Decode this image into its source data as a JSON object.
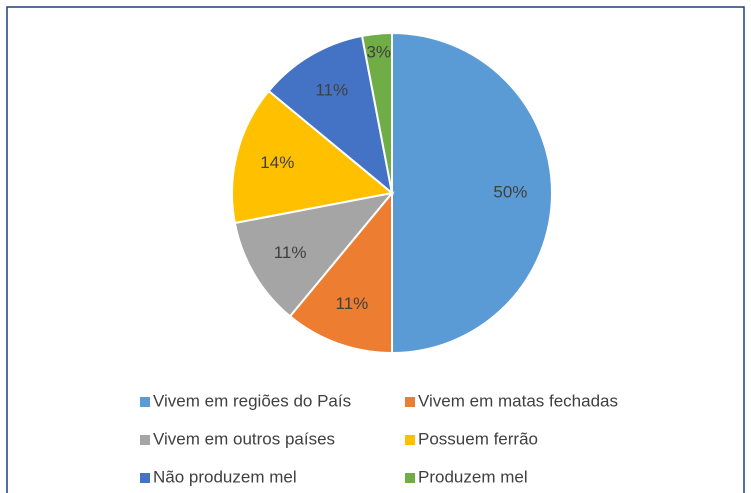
{
  "chart_data": {
    "type": "pie",
    "categories": [
      "Vivem em regiões do País",
      "Vivem em matas fechadas",
      "Vivem em outros países",
      "Possuem ferrão",
      "Não produzem mel",
      "Produzem mel"
    ],
    "values": [
      50,
      11,
      11,
      14,
      11,
      3
    ],
    "value_labels": [
      "50%",
      "11%",
      "11%",
      "14%",
      "11%",
      "3%"
    ],
    "colors": [
      "#5b9bd5",
      "#ed7d31",
      "#a5a5a5",
      "#ffc000",
      "#4472c4",
      "#70ad47"
    ],
    "legend": "bottom"
  }
}
